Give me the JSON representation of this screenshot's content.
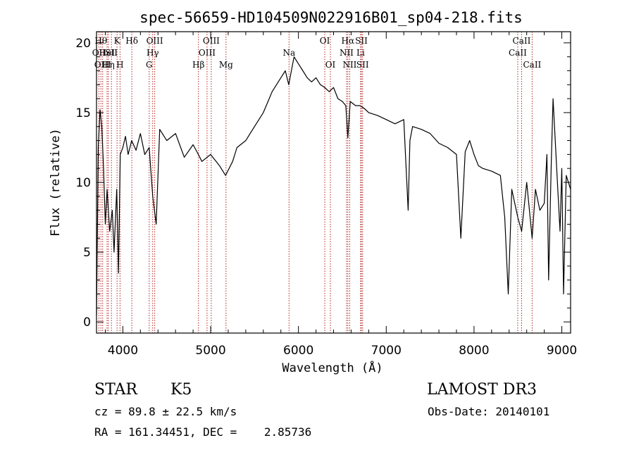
{
  "chart_data": {
    "type": "line",
    "title": "spec-56659-HD104509N022916B01_sp04-218.fits",
    "xlabel": "Wavelength (Å)",
    "ylabel": "Flux (relative)",
    "xlim": [
      3700,
      9100
    ],
    "ylim": [
      -0.8,
      20.8
    ],
    "x_ticks": [
      4000,
      5000,
      6000,
      7000,
      8000,
      9000
    ],
    "y_ticks": [
      0,
      5,
      10,
      15,
      20
    ],
    "grid": false,
    "legend": "none",
    "line_color": "#000000",
    "marker_color": "#b22222",
    "series": [
      {
        "x": [
          3700,
          3720,
          3740,
          3760,
          3780,
          3800,
          3820,
          3850,
          3880,
          3900,
          3930,
          3950,
          3970,
          4000,
          4030,
          4060,
          4100,
          4150,
          4200,
          4250,
          4300,
          4340,
          4380,
          4420,
          4500,
          4600,
          4700,
          4800,
          4860,
          4900,
          5000,
          5100,
          5170,
          5250,
          5300,
          5400,
          5500,
          5600,
          5700,
          5800,
          5850,
          5890,
          5950,
          6000,
          6050,
          6100,
          6150,
          6200,
          6250,
          6300,
          6350,
          6400,
          6450,
          6500,
          6540,
          6563,
          6590,
          6650,
          6700,
          6750,
          6800,
          6900,
          7000,
          7100,
          7200,
          7250,
          7270,
          7300,
          7400,
          7500,
          7600,
          7700,
          7800,
          7850,
          7900,
          7950,
          8000,
          8050,
          8100,
          8200,
          8300,
          8350,
          8390,
          8430,
          8498,
          8542,
          8600,
          8662,
          8700,
          8750,
          8800,
          8830,
          8850,
          8880,
          8900,
          8950,
          8980,
          9000,
          9020,
          9050,
          9100
        ],
        "y": [
          0.5,
          12.5,
          15.2,
          14.0,
          11.0,
          7.0,
          9.5,
          6.5,
          8.0,
          5.0,
          9.5,
          3.5,
          12.0,
          12.5,
          13.3,
          12.0,
          13.0,
          12.3,
          13.5,
          12.0,
          12.5,
          9.0,
          7.0,
          13.8,
          13.0,
          13.5,
          11.8,
          12.7,
          12.0,
          11.5,
          12.0,
          11.2,
          10.5,
          11.5,
          12.5,
          13.0,
          14.0,
          15.0,
          16.5,
          17.5,
          18.0,
          17.0,
          19.0,
          18.5,
          18.0,
          17.5,
          17.2,
          17.5,
          17.0,
          16.8,
          16.5,
          16.8,
          16.0,
          15.8,
          15.5,
          13.2,
          15.8,
          15.5,
          15.5,
          15.3,
          15.0,
          14.8,
          14.5,
          14.2,
          14.5,
          8.0,
          13.0,
          14.0,
          13.8,
          13.5,
          12.8,
          12.5,
          12.0,
          6.0,
          12.2,
          13.0,
          12.0,
          11.2,
          11.0,
          10.8,
          10.5,
          7.5,
          2.0,
          9.5,
          7.5,
          6.5,
          10.0,
          6.0,
          9.5,
          8.0,
          8.5,
          12.0,
          3.0,
          11.5,
          16.0,
          10.0,
          6.5,
          11.0,
          2.0,
          10.5,
          9.5
        ]
      }
    ],
    "lines": [
      {
        "x": 3750,
        "top": "Hθ"
      },
      {
        "x": 3727,
        "top": "OII",
        "level": 2
      },
      {
        "x": 3770,
        "top": "OIII",
        "level": 3
      },
      {
        "x": 3820,
        "top": "HeI",
        "level": 2
      },
      {
        "x": 3835,
        "top": "Hη",
        "level": 3
      },
      {
        "x": 3870,
        "top": "SII",
        "level": 2
      },
      {
        "x": 3934,
        "top": "K"
      },
      {
        "x": 3968,
        "top": "H",
        "level": 3
      },
      {
        "x": 4102,
        "top": "Hδ"
      },
      {
        "x": 4300,
        "top": "G",
        "level": 3
      },
      {
        "x": 4340,
        "top": "Hγ",
        "level": 2
      },
      {
        "x": 4363,
        "top": "OIII"
      },
      {
        "x": 4861,
        "top": "Hβ",
        "level": 3
      },
      {
        "x": 4959,
        "top": "OIII",
        "level": 2
      },
      {
        "x": 5007,
        "top": "OIII"
      },
      {
        "x": 5175,
        "top": "Mg",
        "level": 3
      },
      {
        "x": 5893,
        "top": "Na",
        "level": 2
      },
      {
        "x": 6300,
        "top": "OI"
      },
      {
        "x": 6364,
        "top": "OI",
        "level": 3
      },
      {
        "x": 6548,
        "top": "NII",
        "level": 2
      },
      {
        "x": 6563,
        "top": "Hα"
      },
      {
        "x": 6584,
        "top": "NII",
        "level": 3
      },
      {
        "x": 6708,
        "top": "Li",
        "level": 2
      },
      {
        "x": 6717,
        "top": "SII"
      },
      {
        "x": 6731,
        "top": "SII",
        "level": 3
      },
      {
        "x": 8498,
        "top": "CaII",
        "level": 2
      },
      {
        "x": 8542,
        "top": "CaII"
      },
      {
        "x": 8662,
        "top": "CaII",
        "level": 3
      }
    ]
  },
  "info": {
    "object_class": "STAR",
    "subclass": "K5",
    "survey": "LAMOST DR3",
    "cz": "cz = 89.8 ± 22.5 km/s",
    "obs_date": "Obs-Date: 20140101",
    "coords": "RA = 161.34451, DEC =    2.85736"
  }
}
